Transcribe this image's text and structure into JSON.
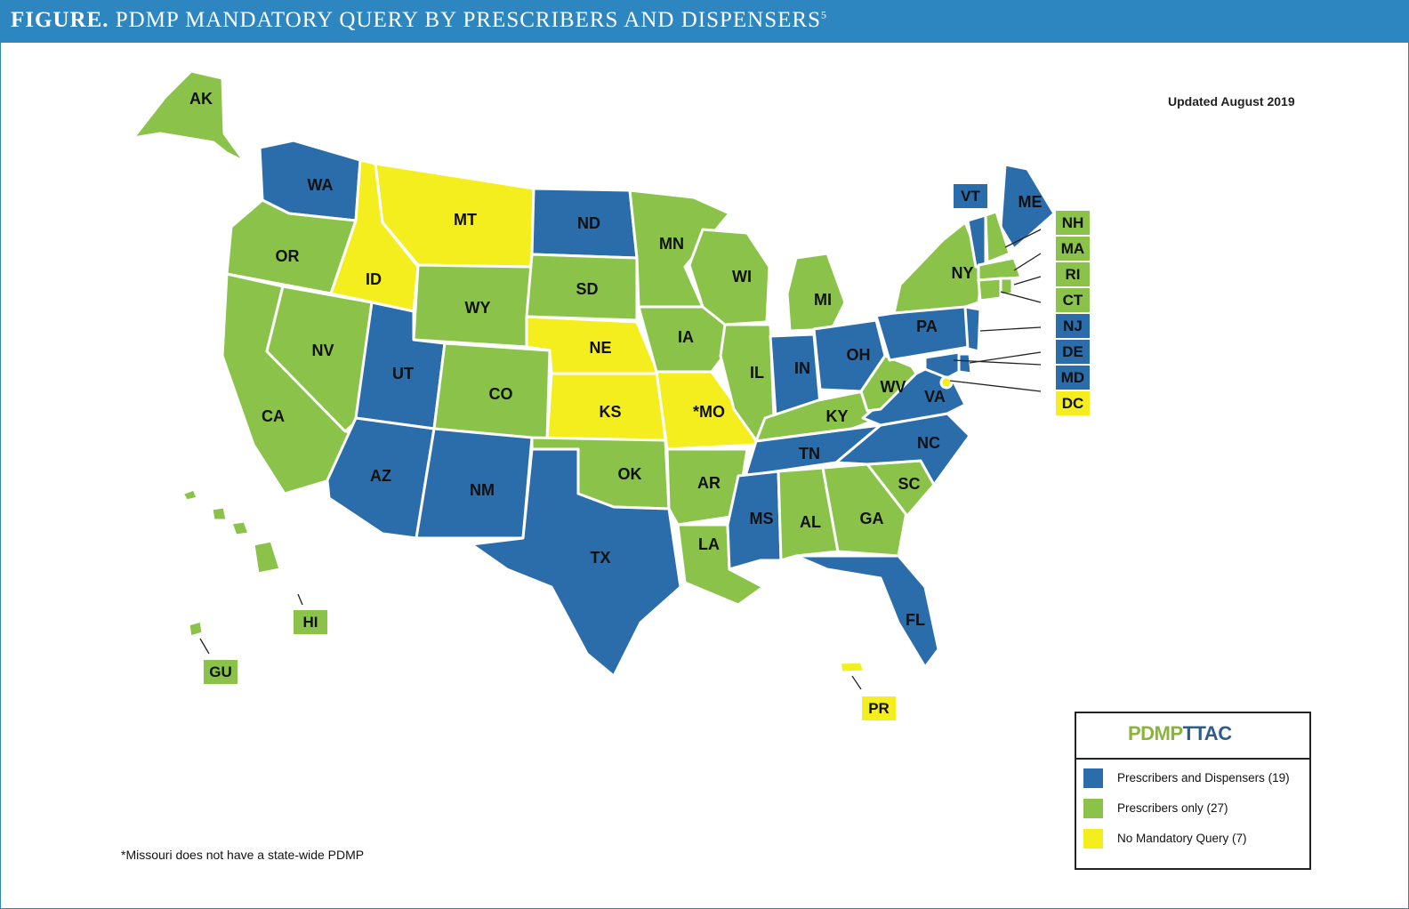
{
  "header": {
    "label": "FIGURE.",
    "title": "PDMP MANDATORY QUERY BY PRESCRIBERS AND DISPENSERS",
    "superscript": "5"
  },
  "updated": "Updated August 2019",
  "footnote": "*Missouri does not have a state-wide PDMP",
  "colors": {
    "prescribers_and_dispensers": "#2b6cab",
    "prescribers_only": "#8bc34a",
    "no_mandatory_query": "#f4ee1e"
  },
  "legend": {
    "logo": {
      "left": "PDMP",
      "right": "TTAC"
    },
    "items": [
      {
        "label": "Prescribers and Dispensers (19)",
        "category": "prescribers_and_dispensers"
      },
      {
        "label": "Prescribers only (27)",
        "category": "prescribers_only"
      },
      {
        "label": "No Mandatory Query (7)",
        "category": "no_mandatory_query"
      }
    ]
  },
  "states": {
    "WA": {
      "label": "WA",
      "category": "prescribers_and_dispensers"
    },
    "OR": {
      "label": "OR",
      "category": "prescribers_only"
    },
    "CA": {
      "label": "CA",
      "category": "prescribers_only"
    },
    "NV": {
      "label": "NV",
      "category": "prescribers_only"
    },
    "ID": {
      "label": "ID",
      "category": "no_mandatory_query"
    },
    "MT": {
      "label": "MT",
      "category": "no_mandatory_query"
    },
    "WY": {
      "label": "WY",
      "category": "prescribers_only"
    },
    "UT": {
      "label": "UT",
      "category": "prescribers_and_dispensers"
    },
    "AZ": {
      "label": "AZ",
      "category": "prescribers_and_dispensers"
    },
    "CO": {
      "label": "CO",
      "category": "prescribers_only"
    },
    "NM": {
      "label": "NM",
      "category": "prescribers_and_dispensers"
    },
    "ND": {
      "label": "ND",
      "category": "prescribers_and_dispensers"
    },
    "SD": {
      "label": "SD",
      "category": "prescribers_only"
    },
    "NE": {
      "label": "NE",
      "category": "no_mandatory_query"
    },
    "KS": {
      "label": "KS",
      "category": "no_mandatory_query"
    },
    "OK": {
      "label": "OK",
      "category": "prescribers_only"
    },
    "TX": {
      "label": "TX",
      "category": "prescribers_and_dispensers"
    },
    "MN": {
      "label": "MN",
      "category": "prescribers_only"
    },
    "IA": {
      "label": "IA",
      "category": "prescribers_only"
    },
    "MO": {
      "label": "*MO",
      "category": "no_mandatory_query"
    },
    "AR": {
      "label": "AR",
      "category": "prescribers_only"
    },
    "LA": {
      "label": "LA",
      "category": "prescribers_only"
    },
    "WI": {
      "label": "WI",
      "category": "prescribers_only"
    },
    "IL": {
      "label": "IL",
      "category": "prescribers_only"
    },
    "MI": {
      "label": "MI",
      "category": "prescribers_only"
    },
    "IN": {
      "label": "IN",
      "category": "prescribers_and_dispensers"
    },
    "OH": {
      "label": "OH",
      "category": "prescribers_and_dispensers"
    },
    "KY": {
      "label": "KY",
      "category": "prescribers_only"
    },
    "TN": {
      "label": "TN",
      "category": "prescribers_and_dispensers"
    },
    "MS": {
      "label": "MS",
      "category": "prescribers_and_dispensers"
    },
    "AL": {
      "label": "AL",
      "category": "prescribers_only"
    },
    "GA": {
      "label": "GA",
      "category": "prescribers_only"
    },
    "FL": {
      "label": "FL",
      "category": "prescribers_and_dispensers"
    },
    "SC": {
      "label": "SC",
      "category": "prescribers_only"
    },
    "NC": {
      "label": "NC",
      "category": "prescribers_and_dispensers"
    },
    "VA": {
      "label": "VA",
      "category": "prescribers_and_dispensers"
    },
    "WV": {
      "label": "WV",
      "category": "prescribers_only"
    },
    "PA": {
      "label": "PA",
      "category": "prescribers_and_dispensers"
    },
    "NY": {
      "label": "NY",
      "category": "prescribers_only"
    },
    "ME": {
      "label": "ME",
      "category": "prescribers_and_dispensers"
    },
    "VT": {
      "label": "VT",
      "category": "prescribers_and_dispensers"
    },
    "NH": {
      "label": "NH",
      "category": "prescribers_only"
    },
    "MA": {
      "label": "MA",
      "category": "prescribers_only"
    },
    "RI": {
      "label": "RI",
      "category": "prescribers_only"
    },
    "CT": {
      "label": "CT",
      "category": "prescribers_only"
    },
    "NJ": {
      "label": "NJ",
      "category": "prescribers_and_dispensers"
    },
    "DE": {
      "label": "DE",
      "category": "prescribers_and_dispensers"
    },
    "MD": {
      "label": "MD",
      "category": "prescribers_and_dispensers"
    },
    "DC": {
      "label": "DC",
      "category": "no_mandatory_query"
    },
    "AK": {
      "label": "AK",
      "category": "prescribers_only"
    },
    "HI": {
      "label": "HI",
      "category": "prescribers_only"
    },
    "GU": {
      "label": "GU",
      "category": "prescribers_only"
    },
    "PR": {
      "label": "PR",
      "category": "no_mandatory_query"
    }
  }
}
